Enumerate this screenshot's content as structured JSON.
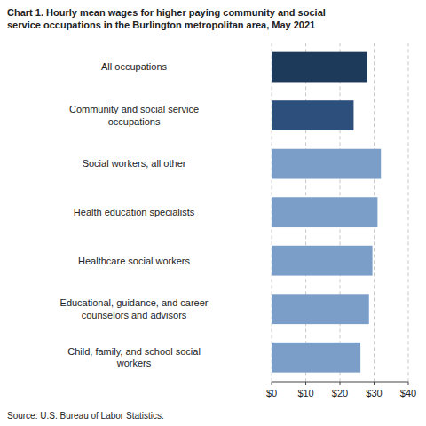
{
  "chart_data": {
    "type": "bar",
    "orientation": "horizontal",
    "title": "Chart 1. Hourly mean wages for higher paying community and social\nservice occupations in the Burlington metropolitan area, May 2021",
    "categories": [
      "Child, family, and school social\nworkers",
      "Educational, guidance, and career\ncounselors and advisors",
      "Healthcare social workers",
      "Health education specialists",
      "Social workers, all other",
      "Community and social service\noccupations",
      "All occupations"
    ],
    "values": [
      26.0,
      28.5,
      29.5,
      31.0,
      32.0,
      24.0,
      28.0
    ],
    "colors": [
      "#7a9ec8",
      "#7a9ec8",
      "#7a9ec8",
      "#7a9ec8",
      "#7a9ec8",
      "#2d4f7c",
      "#1e3a5a"
    ],
    "xlim": [
      0,
      40
    ],
    "xticks": [
      {
        "value": 0,
        "label": "$0"
      },
      {
        "value": 10,
        "label": "$10"
      },
      {
        "value": 20,
        "label": "$20"
      },
      {
        "value": 30,
        "label": "$30"
      },
      {
        "value": 40,
        "label": "$40"
      }
    ],
    "grid": true,
    "annotations": [
      "Source: U.S. Bureau of Labor Statistics."
    ]
  }
}
